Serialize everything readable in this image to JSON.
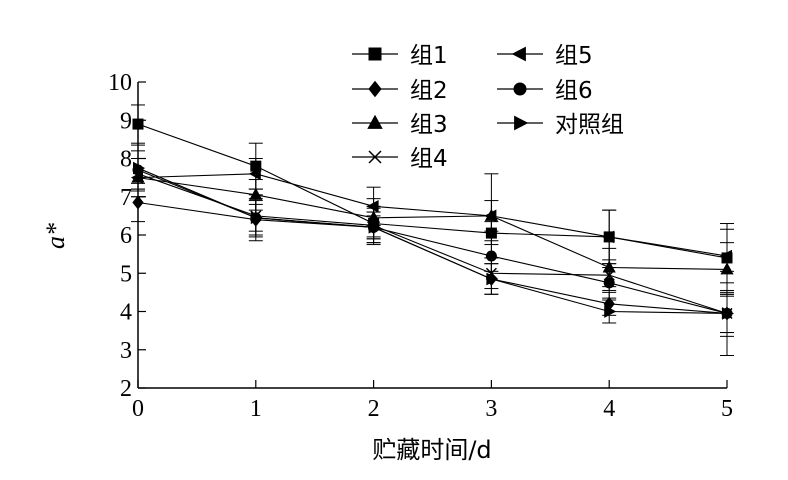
{
  "chart_data": {
    "type": "line",
    "xlabel": "贮藏时间/d",
    "ylabel": "a*",
    "xlim": [
      0,
      5
    ],
    "ylim": [
      2,
      10
    ],
    "x_ticks": [
      0,
      1,
      2,
      3,
      4,
      5
    ],
    "y_ticks": [
      2,
      3,
      4,
      5,
      6,
      7,
      8,
      9,
      10
    ],
    "grid": false,
    "legend_position": "top",
    "x": [
      0,
      1,
      2,
      3,
      4,
      5
    ],
    "series": [
      {
        "name": "组1",
        "marker": "square",
        "values": [
          8.9,
          7.8,
          6.3,
          6.05,
          5.95,
          5.4
        ],
        "errors": [
          0.5,
          0.6,
          0.4,
          0.3,
          0.7,
          0.9
        ]
      },
      {
        "name": "组2",
        "marker": "diamond",
        "values": [
          6.85,
          6.4,
          6.2,
          4.85,
          4.2,
          3.95
        ],
        "errors": [
          0.5,
          0.4,
          0.3,
          0.4,
          0.3,
          0.5
        ]
      },
      {
        "name": "组3",
        "marker": "triangle-up",
        "values": [
          7.5,
          7.05,
          6.45,
          6.5,
          5.15,
          5.1
        ],
        "errors": [
          0.5,
          0.4,
          0.5,
          0.4,
          0.5,
          0.7
        ]
      },
      {
        "name": "组4",
        "marker": "x",
        "values": [
          7.6,
          6.5,
          6.25,
          5.0,
          4.95,
          3.95
        ],
        "errors": [
          0.4,
          0.4,
          0.5,
          0.4,
          0.4,
          0.5
        ]
      },
      {
        "name": "组5",
        "marker": "triangle-left",
        "values": [
          7.5,
          7.6,
          6.75,
          6.5,
          5.95,
          5.45
        ],
        "errors": [
          0.5,
          0.4,
          0.5,
          1.1,
          0.7,
          0.7
        ]
      },
      {
        "name": "组6",
        "marker": "circle",
        "values": [
          7.7,
          6.45,
          6.2,
          5.45,
          4.75,
          3.95
        ],
        "errors": [
          0.5,
          0.5,
          0.4,
          0.4,
          0.4,
          0.6
        ]
      },
      {
        "name": "对照组",
        "marker": "triangle-right",
        "values": [
          7.75,
          6.45,
          6.2,
          4.85,
          4.0,
          3.95
        ],
        "errors": [
          0.6,
          0.6,
          0.4,
          0.4,
          0.3,
          1.1
        ]
      }
    ]
  }
}
